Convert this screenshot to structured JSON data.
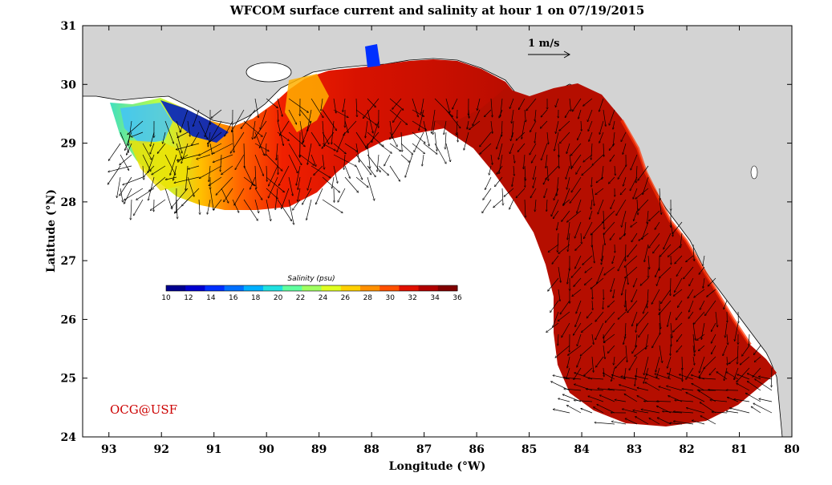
{
  "title": "WFCOM surface current and salinity at hour 1 on 07/19/2015",
  "credit": "OCG@USF",
  "scale_label": "1 m/s",
  "colors": {
    "land": "#d3d3d3",
    "coast": "#000000",
    "credit": "#cc0000",
    "ocean_high_salinity": "#b50e00"
  },
  "map": {
    "xlabel": "Longitude (°W)",
    "ylabel": "Latitude (°N)",
    "lon_range": [
      93.5,
      80.0
    ],
    "lat_range": [
      24.0,
      31.0
    ],
    "lon_ticks": [
      {
        "value": 93,
        "label": "93"
      },
      {
        "value": 92,
        "label": "92"
      },
      {
        "value": 91,
        "label": "91"
      },
      {
        "value": 90,
        "label": "90"
      },
      {
        "value": 89,
        "label": "89"
      },
      {
        "value": 88,
        "label": "88"
      },
      {
        "value": 87,
        "label": "87"
      },
      {
        "value": 86,
        "label": "86"
      },
      {
        "value": 85,
        "label": "85"
      },
      {
        "value": 84,
        "label": "84"
      },
      {
        "value": 83,
        "label": "83"
      },
      {
        "value": 82,
        "label": "82"
      },
      {
        "value": 81,
        "label": "81"
      },
      {
        "value": 80,
        "label": "80"
      }
    ],
    "lat_ticks": [
      {
        "value": 31,
        "label": "31"
      },
      {
        "value": 30,
        "label": "30"
      },
      {
        "value": 29,
        "label": "29"
      },
      {
        "value": 28,
        "label": "28"
      },
      {
        "value": 27,
        "label": "27"
      },
      {
        "value": 26,
        "label": "26"
      },
      {
        "value": 25,
        "label": "25"
      },
      {
        "value": 24,
        "label": "24"
      }
    ]
  },
  "colorbar": {
    "title": "Salinity (psu)",
    "min": 10,
    "max": 36,
    "tick_labels": [
      "10",
      "12",
      "14",
      "16",
      "18",
      "20",
      "22",
      "24",
      "26",
      "28",
      "30",
      "32",
      "34",
      "36"
    ],
    "colors": [
      "#00008f",
      "#0000d0",
      "#0030ff",
      "#0070ff",
      "#00b0ff",
      "#20e0e0",
      "#60ffa0",
      "#a0ff60",
      "#e0ff20",
      "#ffd000",
      "#ff9000",
      "#ff5000",
      "#e01000",
      "#b00000",
      "#800000"
    ]
  }
}
